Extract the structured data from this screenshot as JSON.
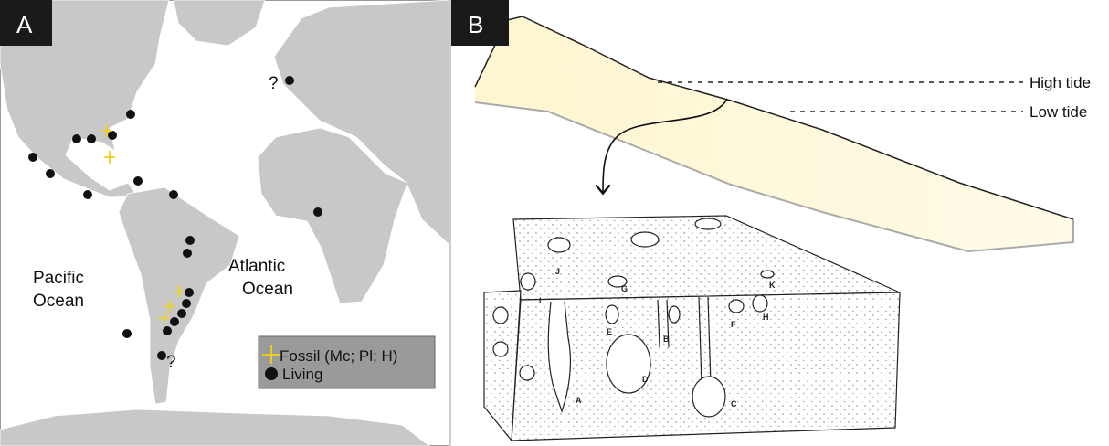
{
  "panel_a": {
    "label": "A",
    "ocean_labels": [
      {
        "lines": [
          "Pacific",
          "Ocean"
        ]
      },
      {
        "lines": [
          "Atlantic",
          "Ocean"
        ]
      }
    ],
    "question_marks": [
      "?",
      "?"
    ],
    "legend": {
      "items": [
        {
          "label": "Fossil (Mc; Pl; H)"
        },
        {
          "label": "Living"
        }
      ]
    }
  },
  "panel_b": {
    "label": "B",
    "tide_labels": [
      "High tide",
      "Low tide"
    ],
    "specimen_labels": [
      "J",
      "G",
      "K",
      "I",
      "E",
      "B",
      "F",
      "H",
      "D",
      "A",
      "C"
    ]
  }
}
